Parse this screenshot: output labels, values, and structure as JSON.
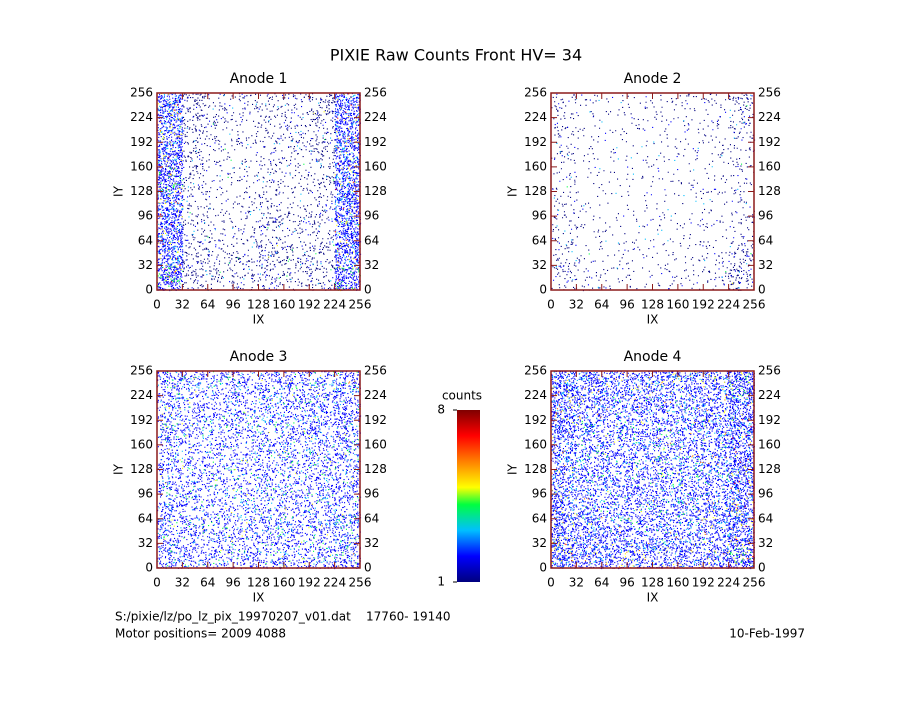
{
  "title": "PIXIE Raw Counts Front HV= 34",
  "chart_data": [
    {
      "type": "heatmap",
      "title": "Anode 1",
      "xlabel": "IX",
      "ylabel": "IY",
      "xlim": [
        0,
        256
      ],
      "ylim": [
        0,
        256
      ],
      "xticks": [
        0,
        32,
        64,
        96,
        128,
        160,
        192,
        224,
        256
      ],
      "yticks": [
        0,
        32,
        64,
        96,
        128,
        160,
        192,
        224,
        256
      ],
      "density": [
        [
          0.8,
          0.25,
          0.12,
          0.12,
          0.15,
          0.15,
          0.25,
          0.8
        ],
        [
          0.7,
          0.2,
          0.12,
          0.1,
          0.12,
          0.15,
          0.2,
          0.75
        ],
        [
          0.8,
          0.18,
          0.1,
          0.08,
          0.12,
          0.12,
          0.2,
          0.75
        ],
        [
          0.85,
          0.15,
          0.08,
          0.08,
          0.12,
          0.1,
          0.15,
          0.8
        ],
        [
          0.8,
          0.12,
          0.08,
          0.1,
          0.15,
          0.1,
          0.15,
          0.8
        ],
        [
          0.75,
          0.15,
          0.1,
          0.1,
          0.2,
          0.12,
          0.15,
          0.8
        ],
        [
          0.8,
          0.2,
          0.15,
          0.15,
          0.25,
          0.2,
          0.2,
          0.8
        ],
        [
          0.85,
          0.2,
          0.15,
          0.15,
          0.2,
          0.15,
          0.2,
          0.85
        ]
      ]
    },
    {
      "type": "heatmap",
      "title": "Anode 2",
      "xlabel": "IX",
      "ylabel": "IY",
      "xlim": [
        0,
        256
      ],
      "ylim": [
        0,
        256
      ],
      "xticks": [
        0,
        32,
        64,
        96,
        128,
        160,
        192,
        224,
        256
      ],
      "yticks": [
        0,
        32,
        64,
        96,
        128,
        160,
        192,
        224,
        256
      ],
      "density": [
        [
          0.12,
          0.06,
          0.05,
          0.05,
          0.06,
          0.06,
          0.08,
          0.2
        ],
        [
          0.1,
          0.05,
          0.04,
          0.05,
          0.05,
          0.06,
          0.07,
          0.15
        ],
        [
          0.1,
          0.04,
          0.04,
          0.04,
          0.05,
          0.05,
          0.06,
          0.1
        ],
        [
          0.08,
          0.04,
          0.03,
          0.04,
          0.04,
          0.05,
          0.05,
          0.08
        ],
        [
          0.1,
          0.04,
          0.03,
          0.04,
          0.04,
          0.04,
          0.05,
          0.08
        ],
        [
          0.1,
          0.05,
          0.04,
          0.04,
          0.05,
          0.05,
          0.05,
          0.1
        ],
        [
          0.12,
          0.06,
          0.05,
          0.05,
          0.05,
          0.06,
          0.08,
          0.2
        ],
        [
          0.15,
          0.08,
          0.06,
          0.05,
          0.06,
          0.06,
          0.1,
          0.25
        ]
      ]
    },
    {
      "type": "heatmap",
      "title": "Anode 3",
      "xlabel": "IX",
      "ylabel": "IY",
      "xlim": [
        0,
        256
      ],
      "ylim": [
        0,
        256
      ],
      "xticks": [
        0,
        32,
        64,
        96,
        128,
        160,
        192,
        224,
        256
      ],
      "yticks": [
        0,
        32,
        64,
        96,
        128,
        160,
        192,
        224,
        256
      ],
      "density": [
        [
          0.45,
          0.35,
          0.35,
          0.35,
          0.4,
          0.4,
          0.4,
          0.5
        ],
        [
          0.4,
          0.35,
          0.3,
          0.35,
          0.4,
          0.4,
          0.4,
          0.45
        ],
        [
          0.4,
          0.3,
          0.3,
          0.3,
          0.35,
          0.35,
          0.4,
          0.45
        ],
        [
          0.35,
          0.3,
          0.3,
          0.3,
          0.35,
          0.35,
          0.35,
          0.4
        ],
        [
          0.35,
          0.3,
          0.3,
          0.3,
          0.35,
          0.3,
          0.35,
          0.4
        ],
        [
          0.4,
          0.35,
          0.3,
          0.3,
          0.35,
          0.35,
          0.35,
          0.4
        ],
        [
          0.4,
          0.35,
          0.35,
          0.35,
          0.4,
          0.35,
          0.4,
          0.45
        ],
        [
          0.45,
          0.35,
          0.35,
          0.35,
          0.35,
          0.35,
          0.4,
          0.5
        ]
      ]
    },
    {
      "type": "heatmap",
      "title": "Anode 4",
      "xlabel": "IX",
      "ylabel": "IY",
      "xlim": [
        0,
        256
      ],
      "ylim": [
        0,
        256
      ],
      "xticks": [
        0,
        32,
        64,
        96,
        128,
        160,
        192,
        224,
        256
      ],
      "yticks": [
        0,
        32,
        64,
        96,
        128,
        160,
        192,
        224,
        256
      ],
      "density": [
        [
          0.8,
          0.6,
          0.55,
          0.55,
          0.55,
          0.55,
          0.6,
          0.85
        ],
        [
          0.7,
          0.55,
          0.5,
          0.5,
          0.5,
          0.5,
          0.55,
          0.8
        ],
        [
          0.65,
          0.5,
          0.45,
          0.45,
          0.5,
          0.5,
          0.55,
          0.8
        ],
        [
          0.6,
          0.45,
          0.45,
          0.45,
          0.45,
          0.5,
          0.5,
          0.75
        ],
        [
          0.6,
          0.45,
          0.45,
          0.45,
          0.45,
          0.45,
          0.5,
          0.75
        ],
        [
          0.65,
          0.5,
          0.45,
          0.45,
          0.5,
          0.5,
          0.55,
          0.8
        ],
        [
          0.7,
          0.55,
          0.5,
          0.5,
          0.5,
          0.5,
          0.55,
          0.8
        ],
        [
          0.8,
          0.6,
          0.55,
          0.55,
          0.55,
          0.55,
          0.6,
          0.85
        ]
      ]
    }
  ],
  "colorbar": {
    "label": "counts",
    "ticks": [
      1,
      8
    ]
  },
  "footer": {
    "file": "S:/pixie/lz/po_lz_pix_19970207_v01.dat    17760- 19140",
    "motor": "Motor positions= 2009 4088",
    "date": "10-Feb-1997"
  }
}
